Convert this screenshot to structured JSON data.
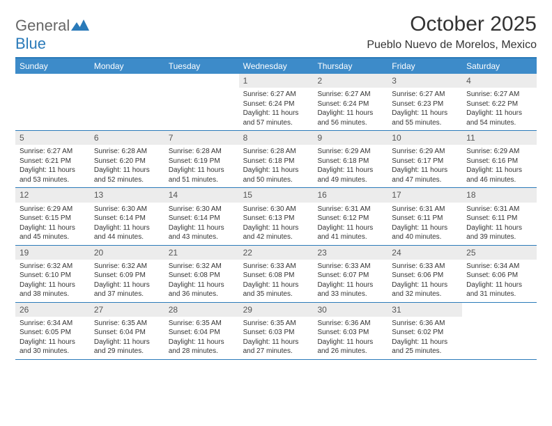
{
  "logo": {
    "text_top": "General",
    "text_bottom": "Blue",
    "mark_color": "#2a7ab9"
  },
  "header": {
    "title": "October 2025",
    "location": "Pueblo Nuevo de Morelos, Mexico"
  },
  "colors": {
    "header_bar": "#3d8bc9",
    "border": "#2a7ab9",
    "daynum_bg": "#ececec",
    "text": "#333333",
    "bg": "#ffffff"
  },
  "weekdays": [
    "Sunday",
    "Monday",
    "Tuesday",
    "Wednesday",
    "Thursday",
    "Friday",
    "Saturday"
  ],
  "first_day_index": 3,
  "days": [
    {
      "n": 1,
      "sunrise": "6:27 AM",
      "sunset": "6:24 PM",
      "daylight": "11 hours and 57 minutes."
    },
    {
      "n": 2,
      "sunrise": "6:27 AM",
      "sunset": "6:24 PM",
      "daylight": "11 hours and 56 minutes."
    },
    {
      "n": 3,
      "sunrise": "6:27 AM",
      "sunset": "6:23 PM",
      "daylight": "11 hours and 55 minutes."
    },
    {
      "n": 4,
      "sunrise": "6:27 AM",
      "sunset": "6:22 PM",
      "daylight": "11 hours and 54 minutes."
    },
    {
      "n": 5,
      "sunrise": "6:27 AM",
      "sunset": "6:21 PM",
      "daylight": "11 hours and 53 minutes."
    },
    {
      "n": 6,
      "sunrise": "6:28 AM",
      "sunset": "6:20 PM",
      "daylight": "11 hours and 52 minutes."
    },
    {
      "n": 7,
      "sunrise": "6:28 AM",
      "sunset": "6:19 PM",
      "daylight": "11 hours and 51 minutes."
    },
    {
      "n": 8,
      "sunrise": "6:28 AM",
      "sunset": "6:18 PM",
      "daylight": "11 hours and 50 minutes."
    },
    {
      "n": 9,
      "sunrise": "6:29 AM",
      "sunset": "6:18 PM",
      "daylight": "11 hours and 49 minutes."
    },
    {
      "n": 10,
      "sunrise": "6:29 AM",
      "sunset": "6:17 PM",
      "daylight": "11 hours and 47 minutes."
    },
    {
      "n": 11,
      "sunrise": "6:29 AM",
      "sunset": "6:16 PM",
      "daylight": "11 hours and 46 minutes."
    },
    {
      "n": 12,
      "sunrise": "6:29 AM",
      "sunset": "6:15 PM",
      "daylight": "11 hours and 45 minutes."
    },
    {
      "n": 13,
      "sunrise": "6:30 AM",
      "sunset": "6:14 PM",
      "daylight": "11 hours and 44 minutes."
    },
    {
      "n": 14,
      "sunrise": "6:30 AM",
      "sunset": "6:14 PM",
      "daylight": "11 hours and 43 minutes."
    },
    {
      "n": 15,
      "sunrise": "6:30 AM",
      "sunset": "6:13 PM",
      "daylight": "11 hours and 42 minutes."
    },
    {
      "n": 16,
      "sunrise": "6:31 AM",
      "sunset": "6:12 PM",
      "daylight": "11 hours and 41 minutes."
    },
    {
      "n": 17,
      "sunrise": "6:31 AM",
      "sunset": "6:11 PM",
      "daylight": "11 hours and 40 minutes."
    },
    {
      "n": 18,
      "sunrise": "6:31 AM",
      "sunset": "6:11 PM",
      "daylight": "11 hours and 39 minutes."
    },
    {
      "n": 19,
      "sunrise": "6:32 AM",
      "sunset": "6:10 PM",
      "daylight": "11 hours and 38 minutes."
    },
    {
      "n": 20,
      "sunrise": "6:32 AM",
      "sunset": "6:09 PM",
      "daylight": "11 hours and 37 minutes."
    },
    {
      "n": 21,
      "sunrise": "6:32 AM",
      "sunset": "6:08 PM",
      "daylight": "11 hours and 36 minutes."
    },
    {
      "n": 22,
      "sunrise": "6:33 AM",
      "sunset": "6:08 PM",
      "daylight": "11 hours and 35 minutes."
    },
    {
      "n": 23,
      "sunrise": "6:33 AM",
      "sunset": "6:07 PM",
      "daylight": "11 hours and 33 minutes."
    },
    {
      "n": 24,
      "sunrise": "6:33 AM",
      "sunset": "6:06 PM",
      "daylight": "11 hours and 32 minutes."
    },
    {
      "n": 25,
      "sunrise": "6:34 AM",
      "sunset": "6:06 PM",
      "daylight": "11 hours and 31 minutes."
    },
    {
      "n": 26,
      "sunrise": "6:34 AM",
      "sunset": "6:05 PM",
      "daylight": "11 hours and 30 minutes."
    },
    {
      "n": 27,
      "sunrise": "6:35 AM",
      "sunset": "6:04 PM",
      "daylight": "11 hours and 29 minutes."
    },
    {
      "n": 28,
      "sunrise": "6:35 AM",
      "sunset": "6:04 PM",
      "daylight": "11 hours and 28 minutes."
    },
    {
      "n": 29,
      "sunrise": "6:35 AM",
      "sunset": "6:03 PM",
      "daylight": "11 hours and 27 minutes."
    },
    {
      "n": 30,
      "sunrise": "6:36 AM",
      "sunset": "6:03 PM",
      "daylight": "11 hours and 26 minutes."
    },
    {
      "n": 31,
      "sunrise": "6:36 AM",
      "sunset": "6:02 PM",
      "daylight": "11 hours and 25 minutes."
    }
  ],
  "labels": {
    "sunrise": "Sunrise:",
    "sunset": "Sunset:",
    "daylight": "Daylight:"
  }
}
